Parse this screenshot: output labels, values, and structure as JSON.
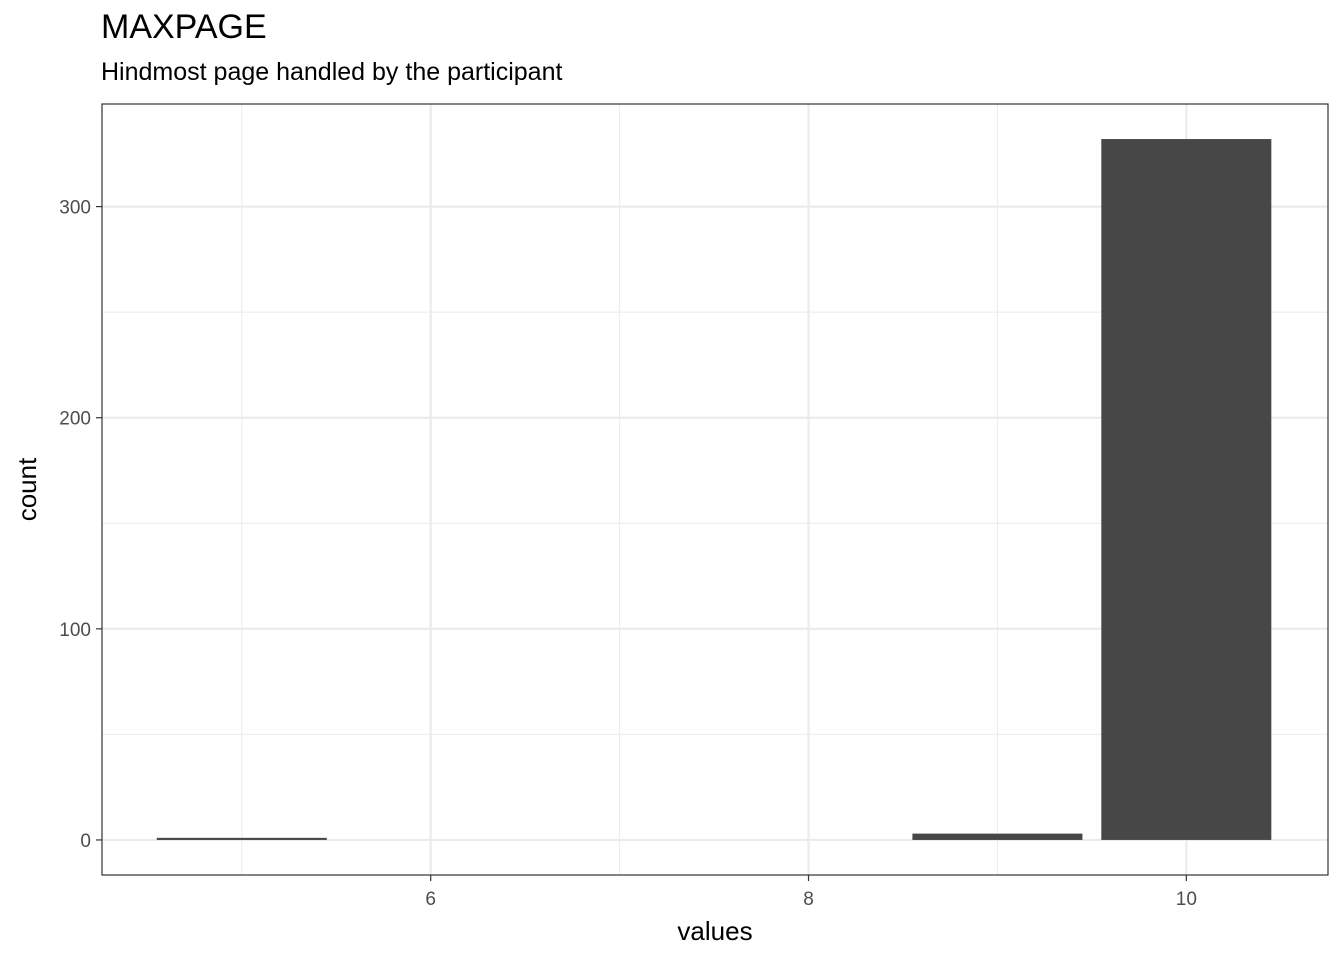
{
  "chart_data": {
    "type": "bar",
    "title": "MAXPAGE",
    "subtitle": "Hindmost page handled by the participant",
    "xlabel": "values",
    "ylabel": "count",
    "x": [
      5,
      9,
      10
    ],
    "values": [
      1,
      3,
      332
    ],
    "bar_width": 0.9,
    "xlim": [
      4.26,
      10.75
    ],
    "ylim": [
      -16.6,
      348.6
    ],
    "xticks": [
      6,
      8,
      10
    ],
    "yticks": [
      0,
      100,
      200,
      300
    ],
    "grid": true,
    "bar_color": "#474747",
    "grid_color": "#ebebeb"
  }
}
